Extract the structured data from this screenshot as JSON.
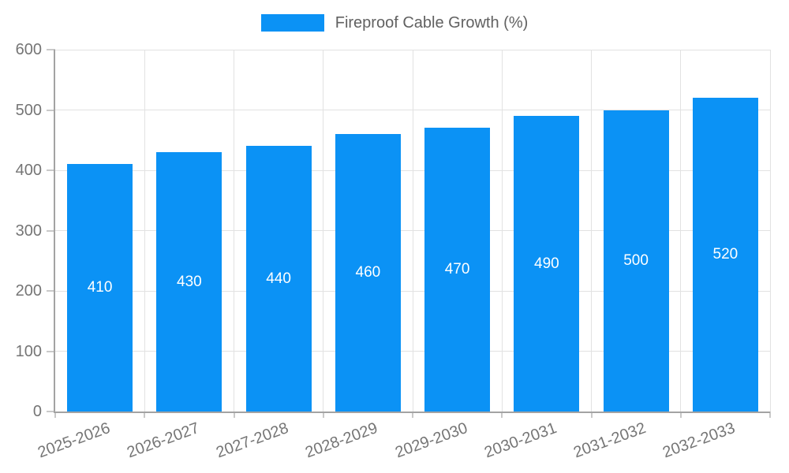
{
  "chart_data": {
    "type": "bar",
    "title": "Fireproof Cable Growth (%)",
    "categories": [
      "2025-2026",
      "2026-2027",
      "2027-2028",
      "2028-2029",
      "2029-2030",
      "2030-2031",
      "2031-2032",
      "2032-2033"
    ],
    "series": [
      {
        "name": "Fireproof Cable Growth (%)",
        "values": [
          410,
          430,
          440,
          460,
          470,
          490,
          500,
          520
        ]
      }
    ],
    "value_labels": [
      410,
      430,
      440,
      460,
      470,
      490,
      500,
      520
    ],
    "xlabel": "",
    "ylabel": "",
    "ylim": [
      0,
      600
    ],
    "yticks": [
      0,
      100,
      200,
      300,
      400,
      500,
      600
    ],
    "grid": true,
    "legend_position": "top-center",
    "value_label_position": "inside-center",
    "x_tick_rotation_deg": -20
  },
  "colors": {
    "bar": "#0b92f5",
    "grid": "#e2e2e2",
    "axis": "#a3a3a3",
    "minor_tick": "#c9c9c9",
    "tick_text": "#757575",
    "value_label_text": "#ffffff",
    "legend_text": "#616161",
    "background": "#ffffff"
  }
}
